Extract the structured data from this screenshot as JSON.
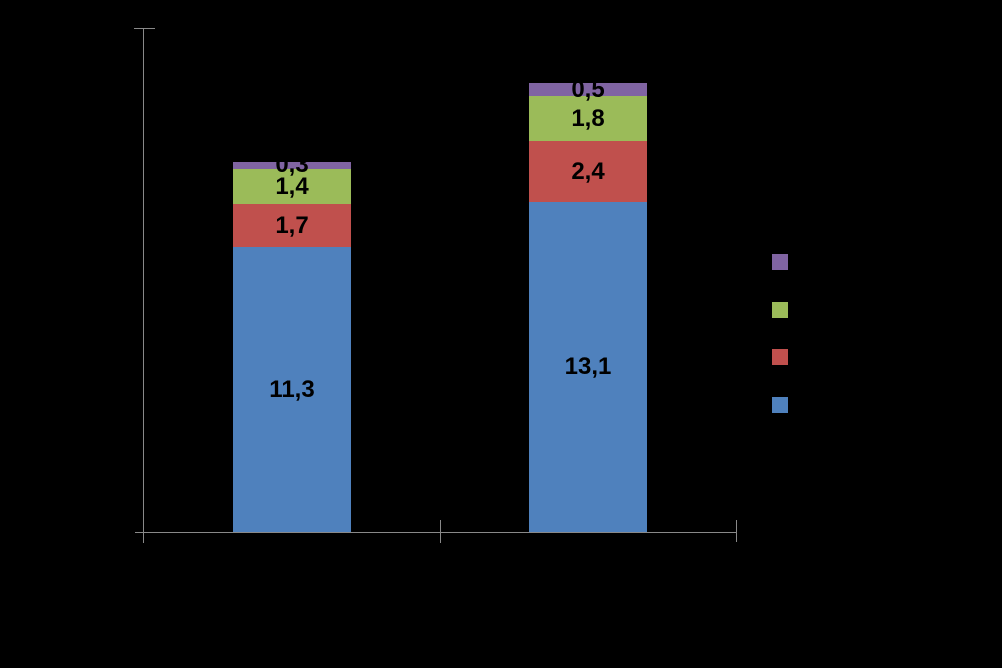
{
  "page": {
    "background_color": "#000000",
    "title": ""
  },
  "chart_data": {
    "type": "bar",
    "stacked": true,
    "title": "",
    "xlabel": "",
    "ylabel": "",
    "categories": [
      "",
      ""
    ],
    "series": [
      {
        "name": "blue-series",
        "color": "#4F81BD",
        "values": [
          11.3,
          13.1
        ],
        "labels": [
          "11,3",
          "13,1"
        ]
      },
      {
        "name": "red-series",
        "color": "#C0504D",
        "values": [
          1.7,
          2.4
        ],
        "labels": [
          "1,7",
          "2,4"
        ]
      },
      {
        "name": "green-series",
        "color": "#9BBB59",
        "values": [
          1.4,
          1.8
        ],
        "labels": [
          "1,4",
          "1,8"
        ]
      },
      {
        "name": "purple-series",
        "color": "#8064A2",
        "values": [
          0.3,
          0.5
        ],
        "labels": [
          "0,3",
          "0,5"
        ]
      }
    ],
    "totals": [
      14.7,
      17.8
    ],
    "ylim": [
      0,
      20
    ],
    "grid": false,
    "data_label_color": "#000000",
    "axis_color": "#898989",
    "legend_position": "right",
    "legend": [
      {
        "swatch": "purple-swatch",
        "color": "#8064A2",
        "label": ""
      },
      {
        "swatch": "green-swatch",
        "color": "#9BBB59",
        "label": ""
      },
      {
        "swatch": "red-swatch",
        "color": "#C0504D",
        "label": ""
      },
      {
        "swatch": "blue-swatch",
        "color": "#4F81BD",
        "label": ""
      }
    ]
  }
}
